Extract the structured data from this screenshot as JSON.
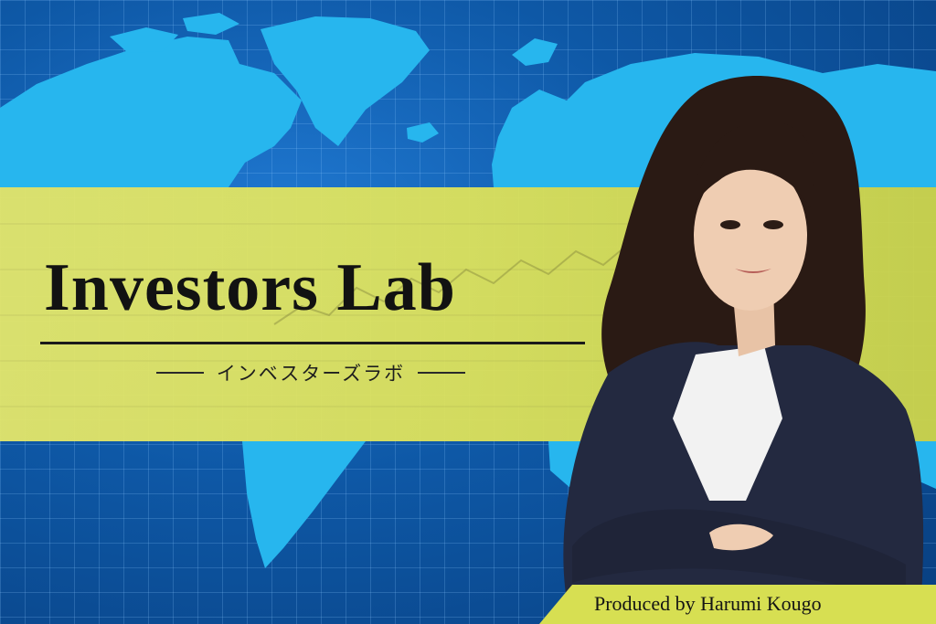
{
  "banner": {
    "title": "Investors Lab",
    "subtitle": "インベスターズラボ",
    "credit": "Produced by Harumi Kougo"
  },
  "colors": {
    "ocean": "#0e58a6",
    "land": "#27b6ee",
    "band": "#dfe35a",
    "title_text": "#121212"
  },
  "photo": {
    "subject": "woman in navy blazer with arms crossed"
  }
}
